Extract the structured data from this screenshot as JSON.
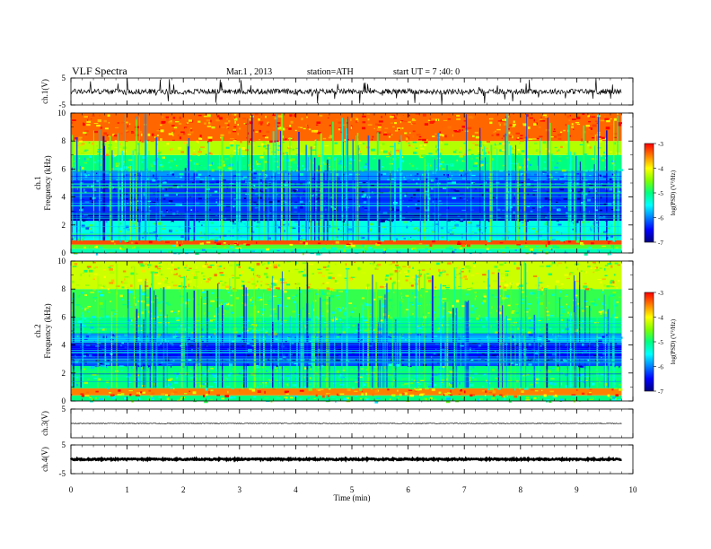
{
  "header": {
    "title": "VLF Spectra",
    "date": "Mar.1 , 2013",
    "station": "station=ATH",
    "start": "start UT = 7 :40: 0"
  },
  "colorbar": {
    "label": "log(PSD) (V²/Hz)",
    "ticks": [
      -3,
      -4,
      -5,
      -6,
      -7
    ],
    "colors": [
      "#000080",
      "#0000ff",
      "#0080ff",
      "#00ffff",
      "#00ff80",
      "#80ff00",
      "#ffff00",
      "#ff8000",
      "#ff0000",
      "#ffffff"
    ]
  },
  "chart_data": [
    {
      "type": "line",
      "id": "ch1-waveform",
      "ylabel": "ch.1(V)",
      "ylim": [
        -5,
        5
      ],
      "yticks": [
        5,
        -5
      ],
      "description_of_series": "noisy waveform centered near 0 V with spikes",
      "baseline_v": 0
    },
    {
      "type": "heatmap",
      "id": "ch1-spectrogram",
      "ylabel_channel": "ch.1",
      "ylabel": "Frequency (kHz)",
      "ylim": [
        0,
        10
      ],
      "yticks": [
        0,
        2,
        4,
        6,
        8,
        10
      ],
      "zlim": [
        -7,
        -3
      ],
      "zlabel": "log(PSD) (V²/Hz)",
      "bands_khz_to_logpsd": [
        {
          "f": [
            0,
            0.3
          ],
          "z": -5.2
        },
        {
          "f": [
            0.3,
            0.6
          ],
          "z": -4.7
        },
        {
          "f": [
            0.6,
            0.9
          ],
          "z": -3.3
        },
        {
          "f": [
            0.9,
            2.3
          ],
          "z": -5.4
        },
        {
          "f": [
            2.3,
            2.9
          ],
          "z": -6.8
        },
        {
          "f": [
            2.9,
            5.2
          ],
          "z": -6.3
        },
        {
          "f": [
            5.2,
            5.9
          ],
          "z": -5.9
        },
        {
          "f": [
            5.9,
            7.0
          ],
          "z": -5.0
        },
        {
          "f": [
            7.0,
            8.0
          ],
          "z": -4.3
        },
        {
          "f": [
            8.0,
            10.0
          ],
          "z": -3.4
        }
      ]
    },
    {
      "type": "heatmap",
      "id": "ch2-spectrogram",
      "ylabel_channel": "ch.2",
      "ylabel": "Frequency (kHz)",
      "ylim": [
        0,
        10
      ],
      "yticks": [
        0,
        2,
        4,
        6,
        8,
        10
      ],
      "zlim": [
        -7,
        -3
      ],
      "zlabel": "log(PSD) (V²/Hz)",
      "bands_khz_to_logpsd": [
        {
          "f": [
            0,
            0.4
          ],
          "z": -5.0
        },
        {
          "f": [
            0.4,
            0.9
          ],
          "z": -3.5
        },
        {
          "f": [
            0.9,
            2.5
          ],
          "z": -5.0
        },
        {
          "f": [
            2.5,
            3.0
          ],
          "z": -6.2
        },
        {
          "f": [
            3.0,
            4.2
          ],
          "z": -6.5
        },
        {
          "f": [
            4.2,
            4.8
          ],
          "z": -5.8
        },
        {
          "f": [
            4.8,
            6.0
          ],
          "z": -5.0
        },
        {
          "f": [
            6.0,
            8.0
          ],
          "z": -4.8
        },
        {
          "f": [
            8.0,
            10.0
          ],
          "z": -4.2
        }
      ]
    },
    {
      "type": "line",
      "id": "ch3-waveform",
      "ylabel": "ch.3(V)",
      "ylim": [
        -5,
        5
      ],
      "yticks": [
        5
      ],
      "baseline_v": 0
    },
    {
      "type": "line",
      "id": "ch4-waveform",
      "ylabel": "ch.4(V)",
      "ylim": [
        -5,
        5
      ],
      "yticks": [
        5,
        -5
      ],
      "baseline_v": 0
    }
  ],
  "xaxis": {
    "label": "Time (min)",
    "xlim": [
      0,
      10
    ],
    "data_end_min": 9.8,
    "ticks": [
      0,
      1,
      2,
      3,
      4,
      5,
      6,
      7,
      8,
      9,
      10
    ]
  }
}
